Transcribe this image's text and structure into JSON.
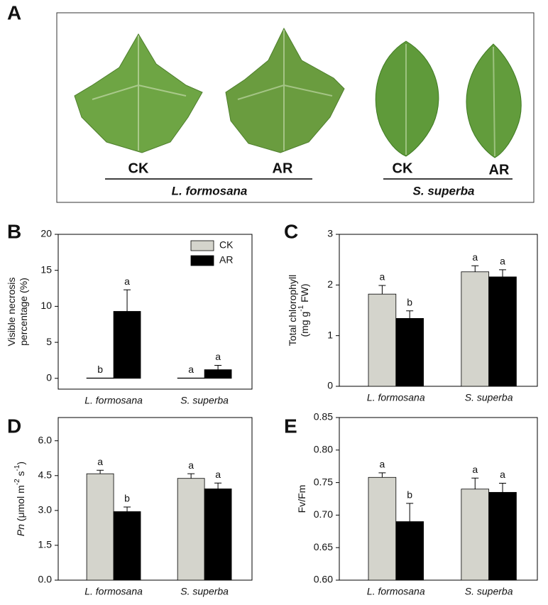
{
  "panel_a": {
    "label": "A",
    "labels": [
      "CK",
      "AR",
      "CK",
      "AR"
    ],
    "groups": [
      "L. formosana",
      "S. superba"
    ]
  },
  "chart_data": [
    {
      "type": "bar",
      "label": "B",
      "ylabel": {
        "lines": [
          [
            {
              "t": "Visible necrosis"
            }
          ],
          [
            {
              "t": "percentage (%)"
            }
          ]
        ]
      },
      "categories": [
        "L. formosana",
        "S. superba"
      ],
      "series": [
        {
          "name": "CK",
          "color": "#d4d4cc",
          "values": [
            0.05,
            0.05
          ],
          "errors": [
            0,
            0
          ],
          "significance": [
            "b",
            "a"
          ]
        },
        {
          "name": "AR",
          "color": "#000000",
          "values": [
            9.3,
            1.2
          ],
          "errors": [
            3.0,
            0.6
          ],
          "significance": [
            "a",
            "a"
          ]
        }
      ],
      "ylim": [
        -1.5,
        20
      ],
      "yticks": [
        0,
        5,
        10,
        15,
        20
      ],
      "legend": "upper right"
    },
    {
      "type": "bar",
      "label": "C",
      "ylabel": {
        "lines": [
          [
            {
              "t": "Total chlorophyll"
            }
          ],
          [
            {
              "t": "(mg g"
            },
            {
              "t": "-1",
              "sup": true
            },
            {
              "t": " FW)"
            }
          ]
        ]
      },
      "categories": [
        "L. formosana",
        "S. superba"
      ],
      "series": [
        {
          "name": "CK",
          "color": "#d4d4cc",
          "values": [
            1.82,
            2.26
          ],
          "errors": [
            0.17,
            0.12
          ],
          "significance": [
            "a",
            "a"
          ]
        },
        {
          "name": "AR",
          "color": "#000000",
          "values": [
            1.34,
            2.16
          ],
          "errors": [
            0.15,
            0.14
          ],
          "significance": [
            "b",
            "a"
          ]
        }
      ],
      "ylim": [
        0,
        3
      ],
      "yticks": [
        0,
        1,
        2,
        3
      ]
    },
    {
      "type": "bar",
      "label": "D",
      "ylabel": {
        "lines": [
          [
            {
              "t": "Pn",
              "italic": true
            },
            {
              "t": " (μmol m"
            },
            {
              "t": "-2",
              "sup": true
            },
            {
              "t": " s"
            },
            {
              "t": "-1",
              "sup": true
            },
            {
              "t": ")"
            }
          ]
        ]
      },
      "categories": [
        "L. formosana",
        "S. superba"
      ],
      "series": [
        {
          "name": "CK",
          "color": "#d4d4cc",
          "values": [
            4.58,
            4.38
          ],
          "errors": [
            0.15,
            0.2
          ],
          "significance": [
            "a",
            "a"
          ]
        },
        {
          "name": "AR",
          "color": "#000000",
          "values": [
            2.95,
            3.93
          ],
          "errors": [
            0.2,
            0.25
          ],
          "significance": [
            "b",
            "a"
          ]
        }
      ],
      "ylim": [
        0,
        7.0
      ],
      "yticks": [
        {
          "value": 0,
          "label": "0.0"
        },
        {
          "value": 1.5,
          "label": "1.5"
        },
        {
          "value": 3,
          "label": "3.0"
        },
        {
          "value": 4.5,
          "label": "4.5"
        },
        {
          "value": 6,
          "label": "6.0"
        }
      ]
    },
    {
      "type": "bar",
      "label": "E",
      "ylabel": {
        "lines": [
          [
            {
              "t": "Fv/Fm"
            }
          ]
        ]
      },
      "categories": [
        "L. formosana",
        "S. superba"
      ],
      "series": [
        {
          "name": "CK",
          "color": "#d4d4cc",
          "values": [
            0.758,
            0.74
          ],
          "errors": [
            0.007,
            0.017
          ],
          "significance": [
            "a",
            "a"
          ]
        },
        {
          "name": "AR",
          "color": "#000000",
          "values": [
            0.69,
            0.735
          ],
          "errors": [
            0.028,
            0.014
          ],
          "significance": [
            "b",
            "a"
          ]
        }
      ],
      "ylim": [
        0.6,
        0.85
      ],
      "yticks": [
        {
          "value": 0.6,
          "label": "0.60"
        },
        {
          "value": 0.65,
          "label": "0.65"
        },
        {
          "value": 0.7,
          "label": "0.70"
        },
        {
          "value": 0.75,
          "label": "0.75"
        },
        {
          "value": 0.8,
          "label": "0.80"
        },
        {
          "value": 0.85,
          "label": "0.85"
        }
      ]
    }
  ]
}
